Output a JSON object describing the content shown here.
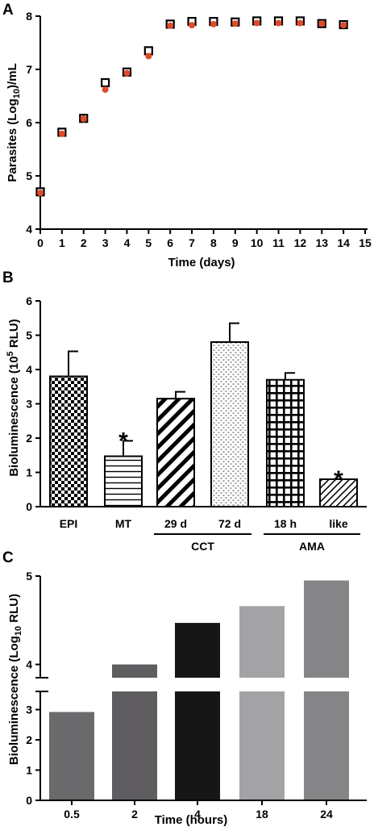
{
  "chart_data": [
    {
      "panel": "A",
      "type": "scatter",
      "xlabel": "Time (days)",
      "ylabel_main": "Parasites (Log",
      "ylabel_sub": "10",
      "ylabel_end": ")/mL",
      "xlim": [
        0,
        15
      ],
      "ylim": [
        4,
        8
      ],
      "xticks": [
        0,
        1,
        2,
        3,
        4,
        5,
        6,
        7,
        8,
        9,
        10,
        11,
        12,
        13,
        14,
        15
      ],
      "yticks": [
        4,
        5,
        6,
        7,
        8
      ],
      "series": [
        {
          "marker": "open-square",
          "color": "#000000",
          "x": [
            0,
            1,
            2,
            3,
            4,
            5,
            6,
            7,
            8,
            9,
            10,
            11,
            12,
            13,
            14
          ],
          "y": [
            4.7,
            5.82,
            6.08,
            6.75,
            6.95,
            7.35,
            7.85,
            7.9,
            7.9,
            7.89,
            7.91,
            7.91,
            7.91,
            7.86,
            7.84
          ]
        },
        {
          "marker": "filled-circle",
          "color": "#e04a2a",
          "x": [
            0,
            1,
            2,
            3,
            4,
            5,
            6,
            7,
            8,
            9,
            10,
            11,
            12,
            13,
            14
          ],
          "y": [
            4.68,
            5.79,
            6.07,
            6.62,
            6.93,
            7.25,
            7.82,
            7.83,
            7.85,
            7.86,
            7.87,
            7.87,
            7.87,
            7.86,
            7.83
          ]
        }
      ]
    },
    {
      "panel": "B",
      "type": "bar",
      "ylabel_main": "Bioluminescence (10",
      "ylabel_sup": "5",
      "ylabel_end": " RLU)",
      "ylim": [
        0,
        6
      ],
      "yticks": [
        0,
        1,
        2,
        3,
        4,
        5,
        6
      ],
      "categories": [
        "EPI",
        "MT",
        "29 d",
        "72 d",
        "18 h",
        "like"
      ],
      "values": [
        3.8,
        1.47,
        3.15,
        4.8,
        3.7,
        0.8
      ],
      "errors": [
        0.73,
        0.45,
        0.2,
        0.55,
        0.2,
        0
      ],
      "patterns": [
        "checker",
        "hlines",
        "diag",
        "dots",
        "grid",
        "hatch"
      ],
      "significance": [
        "",
        "*",
        "",
        "",
        "",
        "*"
      ],
      "groups": [
        {
          "label": "CCT",
          "from": 2,
          "to": 3
        },
        {
          "label": "AMA",
          "from": 4,
          "to": 5
        }
      ]
    },
    {
      "panel": "C",
      "type": "bar",
      "xlabel": "Time (hours)",
      "ylabel_main": "Bioluminescence (Log",
      "ylabel_sub": "10",
      "ylabel_end": " RLU)",
      "axis_break": [
        3.6,
        3.85
      ],
      "ylim": [
        0,
        5
      ],
      "yticks_lower": [
        0,
        1,
        2,
        3
      ],
      "yticks_upper": [
        4,
        5
      ],
      "categories": [
        "0.5",
        "2",
        "4",
        "18",
        "24"
      ],
      "values": [
        2.92,
        4.0,
        4.47,
        4.66,
        4.95
      ],
      "colors": [
        "#6a6a6c",
        "#5f5d60",
        "#161616",
        "#a3a3a6",
        "#858587"
      ]
    }
  ]
}
